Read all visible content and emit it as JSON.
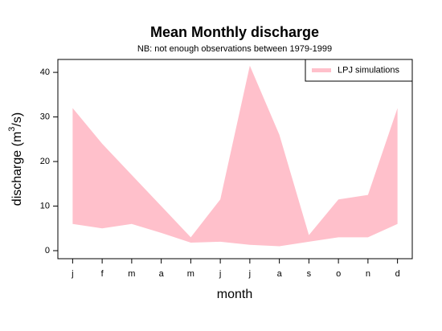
{
  "chart_data": {
    "type": "ribbon",
    "title": "Mean Monthly discharge",
    "subtitle": "NB: not enough observations between 1979-1999",
    "xlabel": "month",
    "ylabel": [
      "discharge (m",
      "3",
      "/s)"
    ],
    "categories": [
      "j",
      "f",
      "m",
      "a",
      "m",
      "j",
      "j",
      "a",
      "s",
      "o",
      "n",
      "d"
    ],
    "series": [
      {
        "name": "LPJ simulations",
        "color": "#ffc0cb",
        "values": [
          32,
          24,
          17,
          10,
          3,
          11.5,
          41.5,
          26,
          3.5,
          11.5,
          12.5,
          32
        ],
        "lower": [
          6,
          5,
          6,
          4,
          1.8,
          2,
          1.3,
          1,
          2,
          3,
          3,
          6
        ]
      }
    ],
    "ylim": [
      -1.8,
      42.9
    ],
    "yticks": [
      0,
      10,
      20,
      30,
      40
    ],
    "legend": "top-right"
  }
}
